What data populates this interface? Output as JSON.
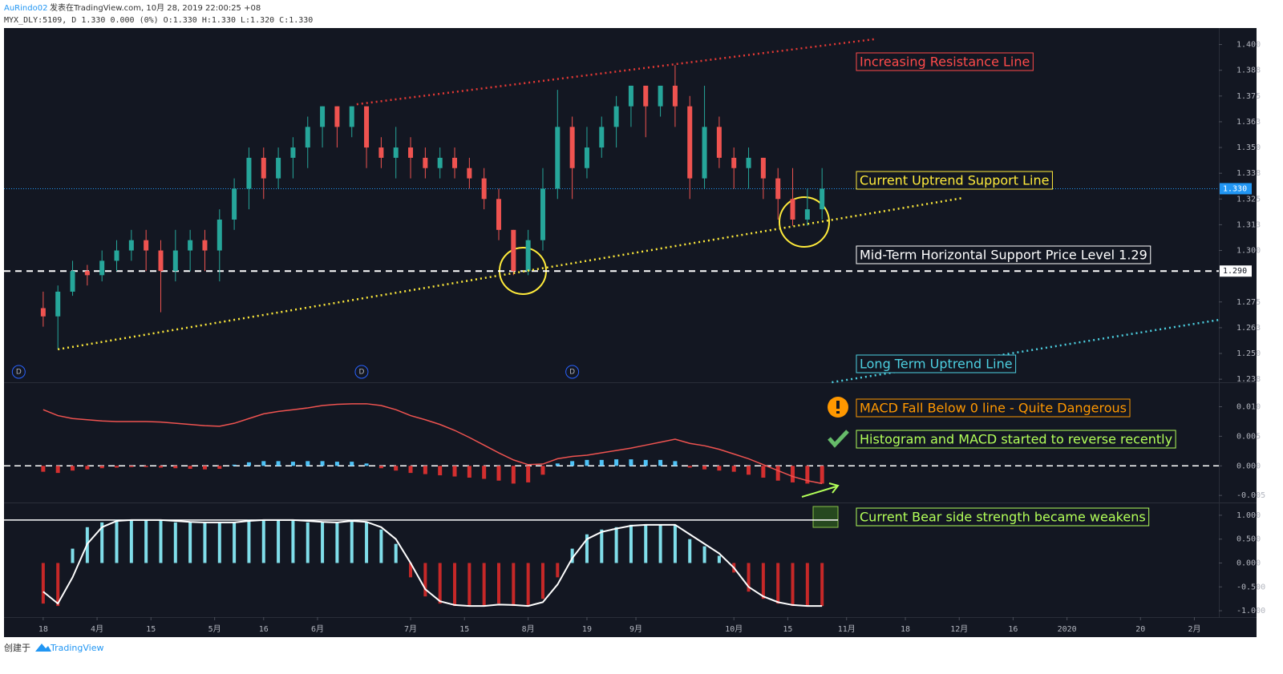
{
  "header": {
    "user": "AuRindo02",
    "published": "发表在TradingView.com, 10月 28, 2019 22:00:25 +08",
    "symbol_line": "MYX_DLY:5109, D 1.330 0.000 (0%) O:1.330 H:1.330 L:1.320 C:1.330"
  },
  "footer": {
    "created": "创建于",
    "brand": "TradingView"
  },
  "chart_data": [
    {
      "type": "candlestick",
      "x": [
        0,
        3,
        6,
        9,
        12,
        15,
        18,
        21,
        24,
        27,
        30,
        33,
        36,
        39,
        42,
        45,
        48,
        51,
        54,
        57,
        60,
        63,
        66,
        69,
        72,
        75,
        78,
        81,
        84,
        87,
        90,
        93,
        96,
        99,
        102,
        105,
        108,
        111,
        114,
        117,
        120,
        123,
        126,
        129,
        132,
        135,
        138,
        141,
        144,
        147,
        150,
        153,
        156,
        159
      ],
      "open": [
        1.272,
        1.268,
        1.28,
        1.29,
        1.288,
        1.295,
        1.3,
        1.305,
        1.3,
        1.29,
        1.3,
        1.305,
        1.3,
        1.315,
        1.33,
        1.345,
        1.335,
        1.345,
        1.35,
        1.36,
        1.37,
        1.36,
        1.37,
        1.35,
        1.345,
        1.35,
        1.345,
        1.34,
        1.345,
        1.34,
        1.335,
        1.325,
        1.31,
        1.29,
        1.305,
        1.33,
        1.36,
        1.34,
        1.35,
        1.36,
        1.37,
        1.38,
        1.37,
        1.38,
        1.37,
        1.335,
        1.36,
        1.345,
        1.34,
        1.345,
        1.335,
        1.325,
        1.315,
        1.32
      ],
      "high": [
        1.28,
        1.283,
        1.295,
        1.293,
        1.3,
        1.305,
        1.31,
        1.31,
        1.305,
        1.31,
        1.31,
        1.31,
        1.32,
        1.335,
        1.35,
        1.35,
        1.35,
        1.355,
        1.365,
        1.37,
        1.37,
        1.37,
        1.37,
        1.355,
        1.36,
        1.355,
        1.35,
        1.35,
        1.35,
        1.345,
        1.34,
        1.33,
        1.31,
        1.31,
        1.34,
        1.378,
        1.365,
        1.36,
        1.365,
        1.375,
        1.38,
        1.38,
        1.38,
        1.39,
        1.375,
        1.38,
        1.365,
        1.35,
        1.35,
        1.345,
        1.34,
        1.34,
        1.33,
        1.34
      ],
      "low": [
        1.263,
        1.252,
        1.278,
        1.283,
        1.285,
        1.29,
        1.295,
        1.29,
        1.27,
        1.285,
        1.29,
        1.29,
        1.285,
        1.31,
        1.32,
        1.325,
        1.33,
        1.335,
        1.34,
        1.35,
        1.35,
        1.355,
        1.34,
        1.34,
        1.335,
        1.335,
        1.335,
        1.335,
        1.335,
        1.33,
        1.32,
        1.305,
        1.288,
        1.288,
        1.3,
        1.325,
        1.325,
        1.335,
        1.345,
        1.35,
        1.36,
        1.355,
        1.365,
        1.36,
        1.325,
        1.33,
        1.34,
        1.33,
        1.33,
        1.325,
        1.315,
        1.312,
        1.312,
        1.315
      ],
      "close": [
        1.268,
        1.28,
        1.29,
        1.288,
        1.295,
        1.3,
        1.305,
        1.3,
        1.29,
        1.3,
        1.305,
        1.3,
        1.315,
        1.33,
        1.345,
        1.335,
        1.345,
        1.35,
        1.36,
        1.37,
        1.36,
        1.37,
        1.35,
        1.345,
        1.35,
        1.345,
        1.34,
        1.345,
        1.34,
        1.335,
        1.325,
        1.31,
        1.29,
        1.305,
        1.33,
        1.36,
        1.34,
        1.35,
        1.36,
        1.37,
        1.38,
        1.37,
        1.38,
        1.37,
        1.335,
        1.36,
        1.345,
        1.34,
        1.345,
        1.335,
        1.325,
        1.315,
        1.32,
        1.33
      ],
      "up_color": "#26a69a",
      "down_color": "#ef5350",
      "xlim": [
        -8,
        240
      ],
      "xticks": [
        {
          "value": 0,
          "label": "18"
        },
        {
          "value": 11,
          "label": "4月"
        },
        {
          "value": 22,
          "label": "15"
        },
        {
          "value": 35,
          "label": "5月"
        },
        {
          "value": 45,
          "label": "16"
        },
        {
          "value": 56,
          "label": "6月"
        },
        {
          "value": 75,
          "label": "7月"
        },
        {
          "value": 86,
          "label": "15"
        },
        {
          "value": 99,
          "label": "8月"
        },
        {
          "value": 111,
          "label": "19"
        },
        {
          "value": 121,
          "label": "9月"
        },
        {
          "value": 141,
          "label": "10月"
        },
        {
          "value": 152,
          "label": "15"
        },
        {
          "value": 164,
          "label": "11月"
        },
        {
          "value": 176,
          "label": "18"
        },
        {
          "value": 187,
          "label": "12月"
        },
        {
          "value": 198,
          "label": "16"
        },
        {
          "value": 209,
          "label": "2020"
        },
        {
          "value": 224,
          "label": "20"
        },
        {
          "value": 235,
          "label": "2月"
        }
      ],
      "ylim": [
        1.236,
        1.408
      ],
      "yticks": [
        {
          "value": 1.4,
          "label": "1.400"
        },
        {
          "value": 1.3875,
          "label": "1.388"
        },
        {
          "value": 1.375,
          "label": "1.375"
        },
        {
          "value": 1.3625,
          "label": "1.363"
        },
        {
          "value": 1.35,
          "label": "1.350"
        },
        {
          "value": 1.3375,
          "label": "1.338"
        },
        {
          "value": 1.325,
          "label": "1.325"
        },
        {
          "value": 1.3125,
          "label": "1.313"
        },
        {
          "value": 1.3,
          "label": "1.300"
        },
        {
          "value": 1.275,
          "label": "1.275"
        },
        {
          "value": 1.2625,
          "label": "1.263"
        },
        {
          "value": 1.25,
          "label": "1.250"
        },
        {
          "value": 1.2375,
          "label": "1.238"
        }
      ],
      "last_price": {
        "value": 1.33,
        "label": "1.330",
        "color": "#2196f3"
      },
      "support_level": {
        "value": 1.29,
        "label": "1.290",
        "color": "#ffffff"
      },
      "trendlines": [
        {
          "x": [
            64,
            170
          ],
          "y": [
            1.371,
            1.4027
          ],
          "color": "#e53935"
        },
        {
          "x": [
            3,
            188
          ],
          "y": [
            1.252,
            1.3256
          ],
          "color": "#ffeb3b"
        },
        {
          "x": [
            161,
            240
          ],
          "y": [
            1.236,
            1.2663
          ],
          "color": "#4dd0e1"
        }
      ],
      "dividends": {
        "label": "D",
        "x": [
          -5,
          65,
          108
        ]
      },
      "annotations": [
        {
          "text": "Increasing Resistance Line",
          "color": "#ff4a4a"
        },
        {
          "text": "Current Uptrend Support Line",
          "color": "#ffeb3b"
        },
        {
          "text": "Mid-Term Horizontal Support Price Level 1.29",
          "color": "#ffffff"
        },
        {
          "text": "Long Term Uptrend Line",
          "color": "#4dd0e1"
        },
        {
          "text": "MACD Fall Below 0 line - Quite Dangerous",
          "color": "#ff9800"
        },
        {
          "text": "Histogram and MACD started to reverse recently",
          "color": "#b2ff59"
        },
        {
          "text": "Current Bear side strength became weakens",
          "color": "#b2ff59"
        }
      ]
    },
    {
      "type": "macd",
      "x": [
        0,
        3,
        6,
        9,
        12,
        15,
        18,
        21,
        24,
        27,
        30,
        33,
        36,
        39,
        42,
        45,
        48,
        51,
        54,
        57,
        60,
        63,
        66,
        69,
        72,
        75,
        78,
        81,
        84,
        87,
        90,
        93,
        96,
        99,
        102,
        105,
        108,
        111,
        114,
        117,
        120,
        123,
        126,
        129,
        132,
        135,
        138,
        141,
        144,
        147,
        150,
        153,
        156,
        159
      ],
      "line": {
        "color": "#ef5350",
        "values": [
          0.0095,
          0.0085,
          0.008,
          0.0078,
          0.0076,
          0.0075,
          0.0075,
          0.0075,
          0.0074,
          0.0072,
          0.007,
          0.0068,
          0.0067,
          0.0072,
          0.008,
          0.0088,
          0.0092,
          0.0095,
          0.0098,
          0.0102,
          0.0104,
          0.0105,
          0.0105,
          0.0102,
          0.0095,
          0.0085,
          0.0078,
          0.007,
          0.006,
          0.0048,
          0.0035,
          0.0022,
          0.001,
          0.0002,
          0.0003,
          0.0012,
          0.0016,
          0.0018,
          0.0022,
          0.0026,
          0.003,
          0.0035,
          0.004,
          0.0045,
          0.0038,
          0.0034,
          0.0028,
          0.002,
          0.0012,
          0.0002,
          -0.0008,
          -0.0018,
          -0.0025,
          -0.003
        ]
      },
      "histogram": {
        "pos_color": "#4fc3f7",
        "neg_color": "#d32f2f",
        "values": [
          -0.001,
          -0.0012,
          -0.0008,
          -0.0006,
          -0.0004,
          -0.0003,
          -0.0002,
          -0.0002,
          -0.0003,
          -0.0004,
          -0.0005,
          -0.0006,
          -0.0005,
          0.0002,
          0.0006,
          0.0008,
          0.0008,
          0.0007,
          0.0008,
          0.0008,
          0.0007,
          0.0007,
          0.0004,
          -0.0004,
          -0.0008,
          -0.0012,
          -0.0014,
          -0.0016,
          -0.0018,
          -0.002,
          -0.0022,
          -0.0025,
          -0.003,
          -0.0028,
          -0.0015,
          0.0004,
          0.0008,
          0.001,
          0.001,
          0.0011,
          0.0011,
          0.001,
          0.001,
          0.0008,
          -0.0003,
          -0.0006,
          -0.0008,
          -0.001,
          -0.0015,
          -0.002,
          -0.0025,
          -0.0028,
          -0.003,
          -0.003
        ]
      },
      "ylim": [
        -0.0062,
        0.014
      ],
      "yticks": [
        {
          "value": 0.01,
          "label": "0.010"
        },
        {
          "value": 0.005,
          "label": "0.005"
        },
        {
          "value": 0,
          "label": "0.000"
        },
        {
          "value": -0.005,
          "label": "-0.005"
        }
      ]
    },
    {
      "type": "oscillator",
      "x": [
        0,
        3,
        6,
        9,
        12,
        15,
        18,
        21,
        24,
        27,
        30,
        33,
        36,
        39,
        42,
        45,
        48,
        51,
        54,
        57,
        60,
        63,
        66,
        69,
        72,
        75,
        78,
        81,
        84,
        87,
        90,
        93,
        96,
        99,
        102,
        105,
        108,
        111,
        114,
        117,
        120,
        123,
        126,
        129,
        132,
        135,
        138,
        141,
        144,
        147,
        150,
        153,
        156,
        159
      ],
      "histogram": {
        "pos_color": "#80deea",
        "neg_color": "#c62828",
        "values": [
          -0.85,
          -0.9,
          0.3,
          0.75,
          0.85,
          0.9,
          0.9,
          0.9,
          0.9,
          0.85,
          0.85,
          0.85,
          0.85,
          0.85,
          0.9,
          0.9,
          0.9,
          0.9,
          0.85,
          0.85,
          0.85,
          0.9,
          0.85,
          0.7,
          0.4,
          -0.3,
          -0.7,
          -0.85,
          -0.9,
          -0.9,
          -0.9,
          -0.85,
          -0.9,
          -0.9,
          -0.75,
          -0.3,
          0.3,
          0.6,
          0.7,
          0.75,
          0.8,
          0.8,
          0.8,
          0.8,
          0.5,
          0.35,
          0.15,
          -0.2,
          -0.6,
          -0.75,
          -0.85,
          -0.9,
          -0.9,
          -0.9
        ]
      },
      "line": {
        "color": "#ffffff",
        "values": [
          -0.6,
          -0.85,
          -0.3,
          0.4,
          0.75,
          0.88,
          0.9,
          0.9,
          0.9,
          0.88,
          0.86,
          0.85,
          0.85,
          0.85,
          0.88,
          0.9,
          0.9,
          0.9,
          0.88,
          0.86,
          0.85,
          0.88,
          0.86,
          0.75,
          0.5,
          0.0,
          -0.55,
          -0.8,
          -0.88,
          -0.9,
          -0.9,
          -0.87,
          -0.88,
          -0.9,
          -0.82,
          -0.45,
          0.1,
          0.5,
          0.65,
          0.72,
          0.78,
          0.8,
          0.8,
          0.8,
          0.6,
          0.4,
          0.2,
          -0.1,
          -0.5,
          -0.7,
          -0.82,
          -0.88,
          -0.9,
          -0.9
        ]
      },
      "level": 0.9,
      "ylim": [
        -1.133,
        1.25
      ],
      "yticks": [
        {
          "value": 1,
          "label": "1.000"
        },
        {
          "value": 0.5,
          "label": "0.500"
        },
        {
          "value": 0,
          "label": "0.000"
        },
        {
          "value": -0.5,
          "label": "-0.500"
        },
        {
          "value": -1,
          "label": "-1.000"
        }
      ]
    }
  ]
}
